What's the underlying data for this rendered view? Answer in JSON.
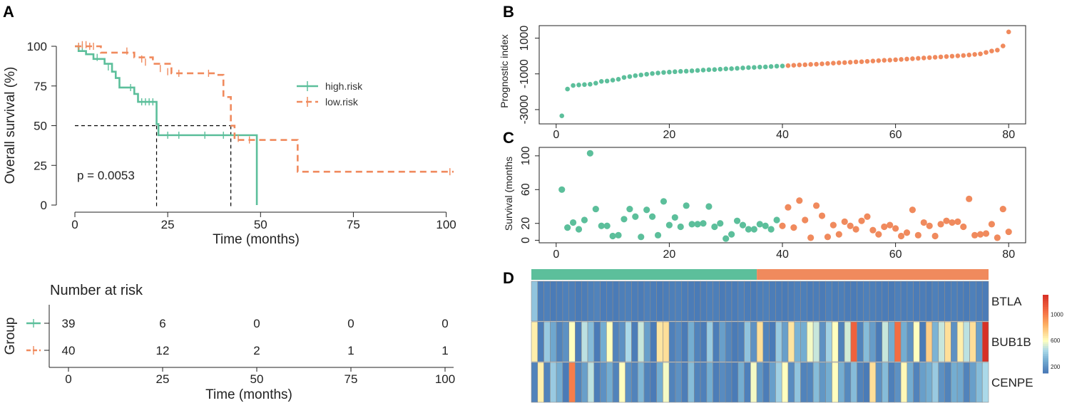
{
  "colors": {
    "high": "#5cbf9b",
    "low": "#f08a5d",
    "axis": "#222222",
    "grid_dash": "#000000"
  },
  "panels": {
    "a": "A",
    "b": "B",
    "c": "C",
    "d": "D"
  },
  "chart_data": [
    {
      "id": "km",
      "type": "line",
      "subtype": "kaplan-meier",
      "xlabel": "Time (months)",
      "ylabel": "Overall survival (%)",
      "xlim": [
        0,
        102
      ],
      "ylim": [
        0,
        100
      ],
      "xticks": [
        0,
        25,
        50,
        75,
        100
      ],
      "yticks": [
        0,
        25,
        50,
        75,
        100
      ],
      "pvalue_text": "p = 0.0053",
      "median_line_y": 50,
      "median_times": [
        22,
        42
      ],
      "legend": [
        {
          "name": "high.risk",
          "color_key": "high"
        },
        {
          "name": "low.risk",
          "color_key": "low"
        }
      ],
      "series": [
        {
          "name": "high.risk",
          "color_key": "high",
          "dashed": false,
          "steps": [
            [
              0,
              100
            ],
            [
              1,
              97
            ],
            [
              3,
              95
            ],
            [
              5,
              92
            ],
            [
              8,
              89
            ],
            [
              10,
              84
            ],
            [
              11,
              80
            ],
            [
              12,
              74
            ],
            [
              16,
              70
            ],
            [
              17,
              65
            ],
            [
              22,
              51
            ],
            [
              22.5,
              44
            ],
            [
              49,
              44
            ],
            [
              49,
              0
            ]
          ],
          "censors": [
            [
              1,
              100
            ],
            [
              2,
              99
            ],
            [
              6,
              93
            ],
            [
              9,
              87
            ],
            [
              15,
              74
            ],
            [
              16,
              72
            ],
            [
              18,
              65
            ],
            [
              19,
              65
            ],
            [
              20,
              65
            ],
            [
              21,
              65
            ],
            [
              25,
              44
            ],
            [
              28,
              44
            ],
            [
              35,
              44
            ],
            [
              40,
              44
            ]
          ]
        },
        {
          "name": "low.risk",
          "color_key": "low",
          "dashed": true,
          "steps": [
            [
              0,
              100
            ],
            [
              7,
              96
            ],
            [
              14,
              96
            ],
            [
              16,
              93
            ],
            [
              21,
              89
            ],
            [
              26,
              83
            ],
            [
              38,
              82
            ],
            [
              40,
              68
            ],
            [
              42,
              50
            ],
            [
              43,
              41
            ],
            [
              60,
              41
            ],
            [
              60,
              21
            ],
            [
              102,
              21
            ]
          ],
          "censors": [
            [
              1,
              100
            ],
            [
              2,
              101
            ],
            [
              3,
              101
            ],
            [
              4,
              100
            ],
            [
              5,
              100
            ],
            [
              14,
              97
            ],
            [
              18,
              92
            ],
            [
              19,
              90
            ],
            [
              23,
              86
            ],
            [
              25,
              84
            ],
            [
              28,
              83
            ],
            [
              36,
              83
            ],
            [
              44,
              42
            ],
            [
              47,
              41
            ],
            [
              101,
              21
            ]
          ]
        }
      ]
    },
    {
      "id": "risk-table",
      "type": "table",
      "title": "Number at risk",
      "xlabel": "Time (months)",
      "ylabel": "Group",
      "xlim": [
        -5,
        105
      ],
      "xticks": [
        0,
        25,
        50,
        75,
        100
      ],
      "rows": [
        {
          "group": "high.risk",
          "color_key": "high",
          "values": [
            39,
            6,
            0,
            0,
            0
          ]
        },
        {
          "group": "low.risk",
          "color_key": "low",
          "values": [
            40,
            12,
            2,
            1,
            1
          ]
        }
      ]
    },
    {
      "id": "prognostic-index",
      "type": "scatter",
      "ylabel": "Prognostic index",
      "xlim": [
        -3,
        83
      ],
      "ylim": [
        -3800,
        1700
      ],
      "xticks": [
        20,
        40,
        60,
        80
      ],
      "xticks_all": [
        0,
        20,
        40,
        60,
        80
      ],
      "yticks": [
        -3000,
        -1000,
        1000
      ],
      "split_index": 40,
      "values": [
        -3350,
        -1850,
        -1650,
        -1620,
        -1600,
        -1580,
        -1520,
        -1420,
        -1400,
        -1350,
        -1300,
        -1200,
        -1150,
        -1100,
        -1060,
        -1020,
        -980,
        -950,
        -920,
        -900,
        -880,
        -860,
        -850,
        -830,
        -810,
        -790,
        -770,
        -760,
        -740,
        -720,
        -710,
        -690,
        -670,
        -650,
        -640,
        -620,
        -610,
        -590,
        -570,
        -560,
        -540,
        -520,
        -500,
        -490,
        -470,
        -460,
        -440,
        -420,
        -400,
        -380,
        -370,
        -350,
        -330,
        -320,
        -300,
        -280,
        -260,
        -240,
        -230,
        -210,
        -190,
        -170,
        -150,
        -130,
        -110,
        -90,
        -70,
        -50,
        -30,
        -10,
        10,
        30,
        60,
        90,
        120,
        200,
        280,
        330,
        560,
        1350
      ]
    },
    {
      "id": "survival-months",
      "type": "scatter",
      "ylabel": "Survival (months",
      "xlim": [
        -3,
        83
      ],
      "ylim": [
        -3,
        110
      ],
      "xticks": [
        20,
        40,
        60,
        80
      ],
      "xticks_all": [
        0,
        20,
        40,
        60,
        80
      ],
      "yticks": [
        0,
        20,
        60,
        100
      ],
      "split_index": 40,
      "values": [
        60,
        15,
        21,
        13,
        24,
        103,
        37,
        17,
        17,
        5,
        6,
        25,
        37,
        28,
        4,
        36,
        28,
        6,
        46,
        18,
        27,
        16,
        41,
        19,
        19,
        20,
        40,
        16,
        20,
        2,
        7,
        23,
        18,
        13,
        13,
        19,
        17,
        13,
        24,
        17,
        39,
        15,
        47,
        24,
        3,
        41,
        29,
        4,
        18,
        7,
        22,
        17,
        13,
        23,
        28,
        12,
        7,
        16,
        18,
        14,
        5,
        9,
        36,
        6,
        21,
        17,
        5,
        19,
        23,
        21,
        22,
        16,
        49,
        6,
        7,
        8,
        19,
        3,
        37,
        10
      ]
    },
    {
      "id": "expression-heatmap",
      "type": "heatmap",
      "rows": [
        "BTLA",
        "BUB1B",
        "CENPE"
      ],
      "group_bar": {
        "n_high": 36,
        "n_low": 37
      },
      "colorbar": {
        "ticks": [
          200,
          600,
          1000
        ],
        "range": [
          100,
          1300
        ]
      },
      "values": [
        [
          380,
          130,
          140,
          120,
          130,
          140,
          135,
          120,
          130,
          140,
          150,
          125,
          130,
          120,
          135,
          140,
          130,
          125,
          140,
          130,
          120,
          130,
          135,
          140,
          130,
          125,
          120,
          130,
          140,
          135,
          120,
          130,
          125,
          140,
          130,
          120,
          135,
          140,
          130,
          125,
          120,
          130,
          140,
          135,
          125,
          130,
          120,
          140,
          130,
          135,
          125,
          120,
          130,
          140,
          135,
          130,
          125,
          120,
          140,
          130,
          135,
          125,
          130,
          120,
          140,
          130,
          125,
          135,
          130,
          120,
          140,
          130,
          125
        ],
        [
          650,
          130,
          400,
          280,
          150,
          200,
          600,
          130,
          480,
          350,
          120,
          300,
          600,
          150,
          200,
          450,
          130,
          500,
          250,
          120,
          680,
          700,
          140,
          180,
          120,
          300,
          150,
          120,
          400,
          130,
          250,
          160,
          120,
          140,
          380,
          200,
          700,
          150,
          120,
          400,
          250,
          680,
          320,
          300,
          580,
          500,
          200,
          420,
          600,
          150,
          520,
          1100,
          150,
          350,
          240,
          120,
          500,
          300,
          1050,
          300,
          200,
          600,
          120,
          750,
          320,
          500,
          700,
          200,
          650,
          480,
          700,
          250,
          1300
        ],
        [
          150,
          650,
          150,
          400,
          300,
          120,
          1000,
          150,
          250,
          480,
          130,
          200,
          300,
          150,
          600,
          200,
          150,
          330,
          150,
          120,
          300,
          580,
          150,
          200,
          130,
          350,
          150,
          140,
          300,
          130,
          180,
          150,
          120,
          300,
          140,
          580,
          220,
          130,
          250,
          420,
          600,
          180,
          380,
          150,
          160,
          350,
          220,
          300,
          600,
          300,
          170,
          350,
          150,
          120,
          700,
          200,
          350,
          140,
          200,
          620,
          300,
          150,
          250,
          300,
          400,
          200,
          150,
          300,
          280,
          150,
          250,
          350,
          450
        ]
      ]
    }
  ]
}
